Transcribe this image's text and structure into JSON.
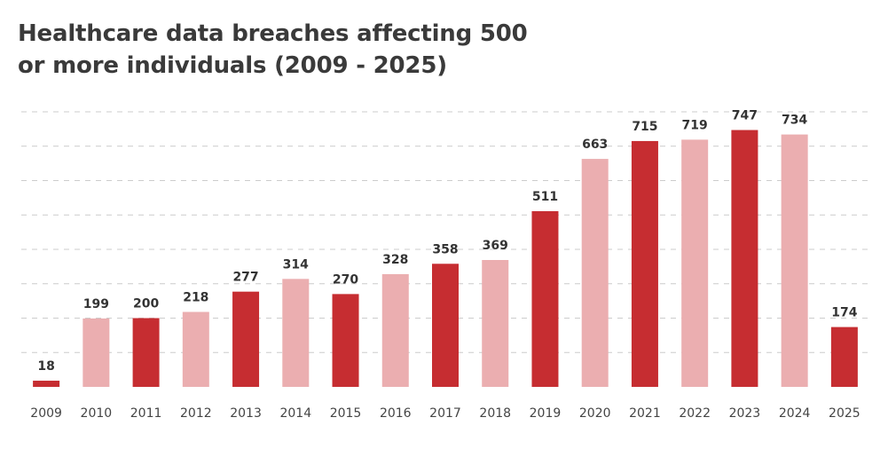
{
  "title_line1": "Healthcare data breaches affecting 500",
  "title_line2": "or more individuals (2009 - 2025)",
  "chart_data": {
    "type": "bar",
    "title": "Healthcare data breaches affecting 500 or more individuals (2009 - 2025)",
    "categories": [
      "2009",
      "2010",
      "2011",
      "2012",
      "2013",
      "2014",
      "2015",
      "2016",
      "2017",
      "2018",
      "2019",
      "2020",
      "2021",
      "2022",
      "2023",
      "2024",
      "2025"
    ],
    "values": [
      18,
      199,
      200,
      218,
      277,
      314,
      270,
      328,
      358,
      369,
      511,
      663,
      715,
      719,
      747,
      734,
      174
    ],
    "ylim": [
      0,
      800
    ],
    "grid": true,
    "colors": {
      "dark": "#c62d31",
      "light": "#ebaeb0",
      "grid": "#cccccc"
    },
    "bar_colors": [
      "dark",
      "light",
      "dark",
      "light",
      "dark",
      "light",
      "dark",
      "light",
      "dark",
      "light",
      "dark",
      "light",
      "dark",
      "light",
      "dark",
      "light",
      "dark"
    ]
  }
}
